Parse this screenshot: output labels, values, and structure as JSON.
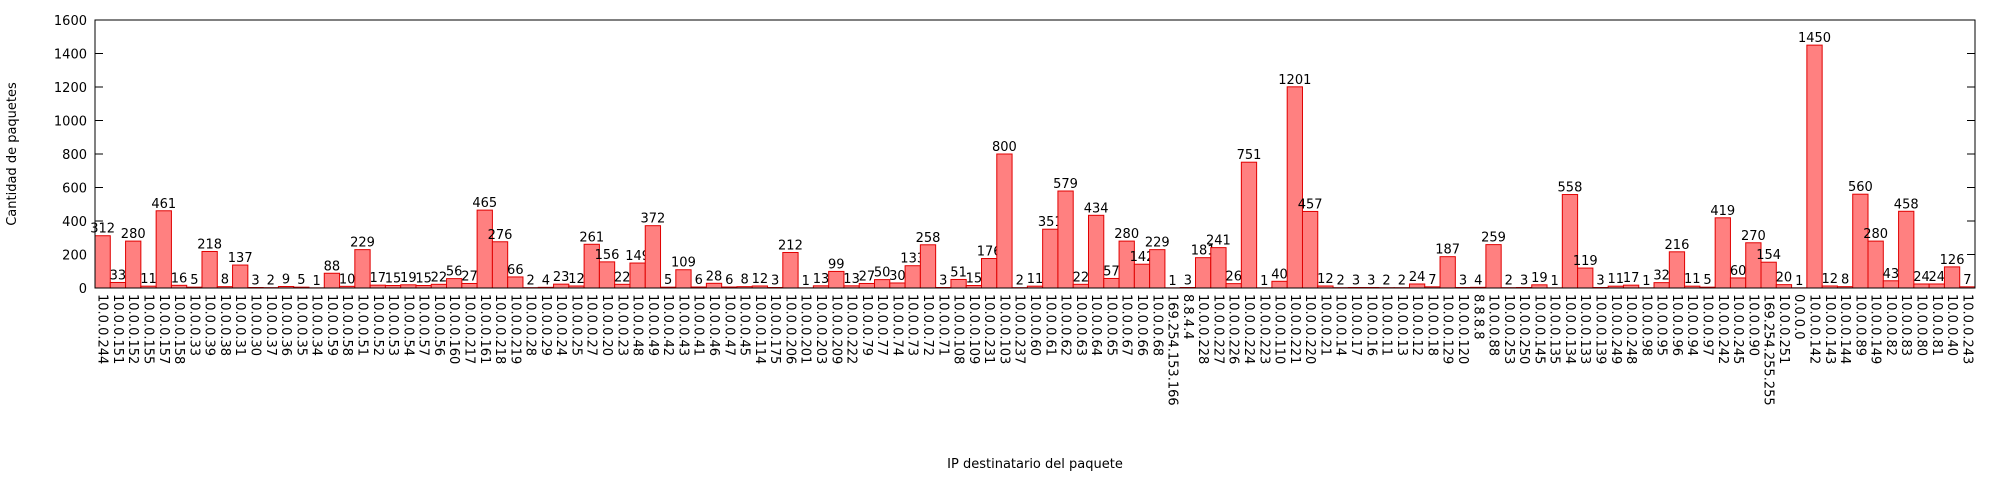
{
  "chart_data": {
    "type": "bar",
    "xlabel": "IP destinatario del paquete",
    "ylabel": "Cantidad de paquetes",
    "categories": [
      "10.0.0.244",
      "10.0.0.151",
      "10.0.0.152",
      "10.0.0.155",
      "10.0.0.157",
      "10.0.0.158",
      "10.0.0.33",
      "10.0.0.39",
      "10.0.0.38",
      "10.0.0.31",
      "10.0.0.30",
      "10.0.0.37",
      "10.0.0.36",
      "10.0.0.35",
      "10.0.0.34",
      "10.0.0.59",
      "10.0.0.58",
      "10.0.0.51",
      "10.0.0.52",
      "10.0.0.53",
      "10.0.0.54",
      "10.0.0.57",
      "10.0.0.56",
      "10.0.0.160",
      "10.0.0.217",
      "10.0.0.161",
      "10.0.0.218",
      "10.0.0.219",
      "10.0.0.28",
      "10.0.0.29",
      "10.0.0.24",
      "10.0.0.25",
      "10.0.0.27",
      "10.0.0.20",
      "10.0.0.23",
      "10.0.0.48",
      "10.0.0.49",
      "10.0.0.42",
      "10.0.0.43",
      "10.0.0.41",
      "10.0.0.46",
      "10.0.0.47",
      "10.0.0.45",
      "10.0.0.114",
      "10.0.0.175",
      "10.0.0.206",
      "10.0.0.201",
      "10.0.0.203",
      "10.0.0.209",
      "10.0.0.222",
      "10.0.0.79",
      "10.0.0.77",
      "10.0.0.74",
      "10.0.0.73",
      "10.0.0.72",
      "10.0.0.71",
      "10.0.0.108",
      "10.0.0.109",
      "10.0.0.231",
      "10.0.0.103",
      "10.0.0.237",
      "10.0.0.60",
      "10.0.0.61",
      "10.0.0.62",
      "10.0.0.63",
      "10.0.0.64",
      "10.0.0.65",
      "10.0.0.67",
      "10.0.0.66",
      "10.0.0.68",
      "169.254.153.166",
      "8.8.4.4",
      "10.0.0.228",
      "10.0.0.227",
      "10.0.0.226",
      "10.0.0.224",
      "10.0.0.223",
      "10.0.0.110",
      "10.0.0.221",
      "10.0.0.220",
      "10.0.0.21",
      "10.0.0.14",
      "10.0.0.17",
      "10.0.0.16",
      "10.0.0.11",
      "10.0.0.13",
      "10.0.0.12",
      "10.0.0.18",
      "10.0.0.129",
      "10.0.0.120",
      "8.8.8.8",
      "10.0.0.88",
      "10.0.0.253",
      "10.0.0.250",
      "10.0.0.145",
      "10.0.0.135",
      "10.0.0.134",
      "10.0.0.133",
      "10.0.0.139",
      "10.0.0.249",
      "10.0.0.248",
      "10.0.0.98",
      "10.0.0.95",
      "10.0.0.96",
      "10.0.0.94",
      "10.0.0.97",
      "10.0.0.242",
      "10.0.0.245",
      "10.0.0.90",
      "169.254.255.255",
      "10.0.0.251",
      "0.0.0.0",
      "10.0.0.142",
      "10.0.0.143",
      "10.0.0.144",
      "10.0.0.89",
      "10.0.0.149",
      "10.0.0.82",
      "10.0.0.83",
      "10.0.0.80",
      "10.0.0.81",
      "10.0.0.40",
      "10.0.0.243"
    ],
    "values": [
      312,
      33,
      280,
      11,
      461,
      16,
      5,
      218,
      8,
      137,
      3,
      2,
      9,
      5,
      1,
      88,
      10,
      229,
      17,
      15,
      19,
      15,
      22,
      56,
      27,
      465,
      276,
      66,
      2,
      4,
      23,
      12,
      261,
      156,
      22,
      149,
      372,
      5,
      109,
      6,
      28,
      6,
      8,
      12,
      3,
      212,
      1,
      13,
      99,
      13,
      27,
      50,
      30,
      133,
      258,
      3,
      51,
      15,
      176,
      800,
      2,
      11,
      351,
      579,
      22,
      434,
      57,
      280,
      142,
      229,
      1,
      3,
      181,
      241,
      26,
      751,
      1,
      40,
      1201,
      457,
      12,
      2,
      3,
      3,
      2,
      2,
      24,
      7,
      187,
      3,
      4,
      259,
      2,
      3,
      19,
      1,
      558,
      119,
      3,
      11,
      17,
      1,
      32,
      216,
      11,
      5,
      419,
      60,
      270,
      154,
      20,
      1,
      1450,
      12,
      8,
      560,
      280,
      43,
      458,
      24,
      24,
      126,
      7
    ],
    "color": "#ff8080",
    "edgecolor": "#e00000",
    "ylim": [
      0,
      1600
    ],
    "yticks": [
      0,
      200,
      400,
      600,
      800,
      1000,
      1200,
      1400,
      1600
    ]
  }
}
